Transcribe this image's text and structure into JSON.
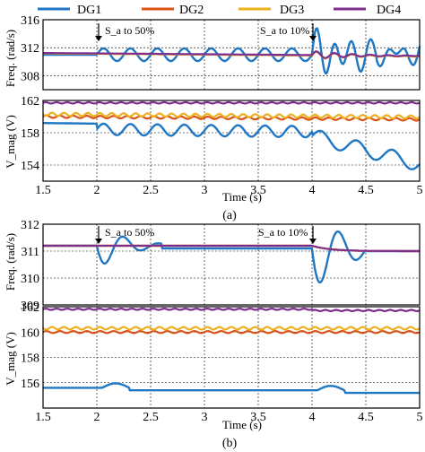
{
  "legend": [
    {
      "name": "DG1",
      "color": "#1f77c4"
    },
    {
      "name": "DG2",
      "color": "#d95319"
    },
    {
      "name": "DG3",
      "color": "#edb120"
    },
    {
      "name": "DG4",
      "color": "#7e2f8e"
    }
  ],
  "axis_label_time": "Time (s)",
  "subfig_labels": [
    "(a)",
    "(b)"
  ],
  "annotations": {
    "a_event1": "S_a to 50%",
    "a_event2": "S_a to 10%",
    "b_event1": "S_a to 50%",
    "b_event2": "S_a to 10%"
  },
  "chart_data": [
    {
      "id": "a-freq",
      "type": "line",
      "ylabel": "Freq. (rad/s)",
      "xlim": [
        1.5,
        5
      ],
      "ylim": [
        306,
        316
      ],
      "yticks": [
        308,
        312,
        316
      ],
      "xticks": [],
      "series": [
        {
          "name": "DG1",
          "approx_level": 311,
          "note": "oscillates ±1 after t=2, large ±4 oscillation after t=4"
        },
        {
          "name": "DG2",
          "approx_level": 311
        },
        {
          "name": "DG3",
          "approx_level": 311
        },
        {
          "name": "DG4",
          "approx_level": 311
        }
      ]
    },
    {
      "id": "a-vmag",
      "type": "line",
      "ylabel": "V_mag (V)",
      "xlim": [
        1.5,
        5
      ],
      "ylim": [
        152,
        162
      ],
      "yticks": [
        154,
        158,
        162
      ],
      "xticks": [
        1.5,
        2,
        2.5,
        3,
        3.5,
        4,
        4.5,
        5
      ],
      "series": [
        {
          "name": "DG1",
          "approx_level": 159,
          "note": "oscillates near 158.5, drops to ~153 by t=5"
        },
        {
          "name": "DG2",
          "approx_level": 160
        },
        {
          "name": "DG3",
          "approx_level": 160.2
        },
        {
          "name": "DG4",
          "approx_level": 161.7
        }
      ]
    },
    {
      "id": "b-freq",
      "type": "line",
      "ylabel": "Freq. (rad/s)",
      "xlim": [
        1.5,
        5
      ],
      "ylim": [
        309,
        312
      ],
      "yticks": [
        309,
        310,
        311,
        312
      ],
      "xticks": [],
      "series": [
        {
          "name": "DG1",
          "approx_level": 311.2,
          "note": "dip to 310.2 after t=2, dip to 309.4 and peak 312 after t=4, settles at 311"
        },
        {
          "name": "DG2",
          "approx_level": 311.2
        },
        {
          "name": "DG3",
          "approx_level": 311.2
        },
        {
          "name": "DG4",
          "approx_level": 311.2
        }
      ]
    },
    {
      "id": "b-vmag",
      "type": "line",
      "ylabel": "V_mag (V)",
      "xlim": [
        1.5,
        5
      ],
      "ylim": [
        154,
        162
      ],
      "yticks": [
        156,
        158,
        160,
        162
      ],
      "xticks": [
        1.5,
        2,
        2.5,
        3,
        3.5,
        4,
        4.5,
        5
      ],
      "series": [
        {
          "name": "DG1",
          "approx_level": 155.6,
          "note": "small bump at t=2.1 and t=4.1"
        },
        {
          "name": "DG2",
          "approx_level": 160.0
        },
        {
          "name": "DG3",
          "approx_level": 160.2
        },
        {
          "name": "DG4",
          "approx_level": 161.8
        }
      ]
    }
  ]
}
